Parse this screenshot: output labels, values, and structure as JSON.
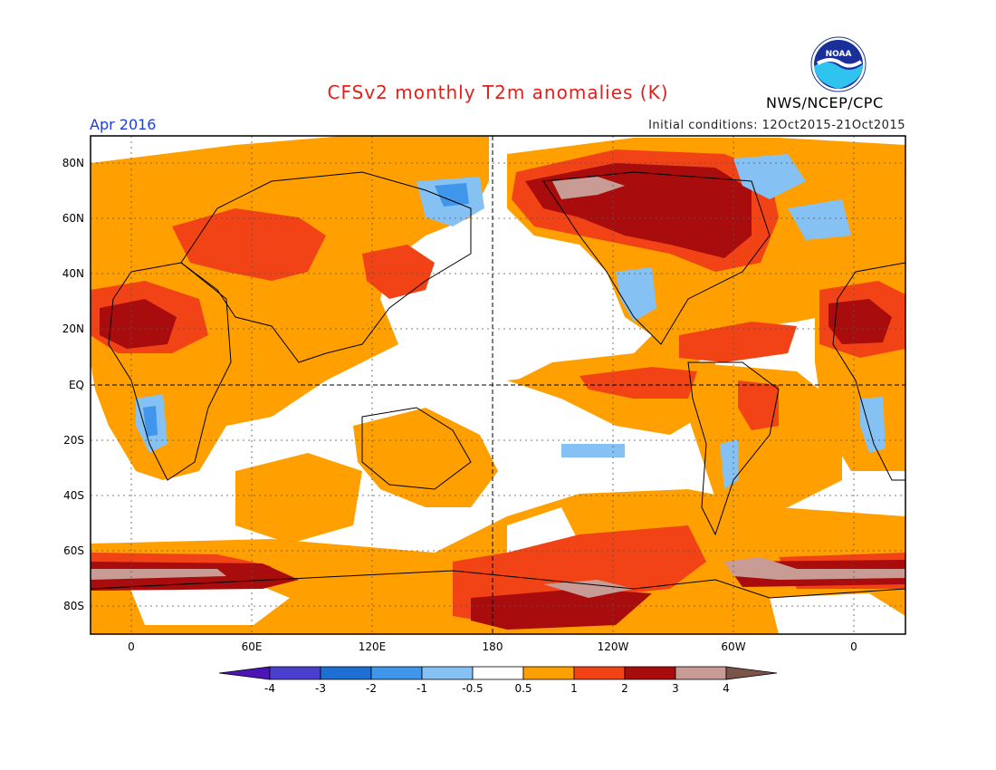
{
  "header": {
    "title": "CFSv2 monthly T2m anomalies (K)",
    "agency": "NWS/NCEP/CPC",
    "valid_month": "Apr 2016",
    "initial_conditions": "Initial conditions: 12Oct2015-21Oct2015",
    "logo_text": "NOAA"
  },
  "colors": {
    "title": "#e0201c",
    "valid_month": "#1c3ce6",
    "map_border": "#000000"
  },
  "map": {
    "lat_labels": [
      "80N",
      "60N",
      "40N",
      "20N",
      "EQ",
      "20S",
      "40S",
      "60S",
      "80S"
    ],
    "lon_labels": [
      "0",
      "60E",
      "120E",
      "180",
      "120W",
      "60W",
      "0"
    ]
  },
  "legend": {
    "tick_labels": [
      "-4",
      "-3",
      "-2",
      "-1",
      "-0.5",
      "0.5",
      "1",
      "2",
      "3",
      "4"
    ],
    "colors": [
      "#4b16b5",
      "#4b3fcf",
      "#1e6fd4",
      "#3f96eb",
      "#86c1f4",
      "#ffffff",
      "#ff9f00",
      "#f24317",
      "#a80c0c",
      "#c89b94",
      "#7a5449"
    ]
  }
}
